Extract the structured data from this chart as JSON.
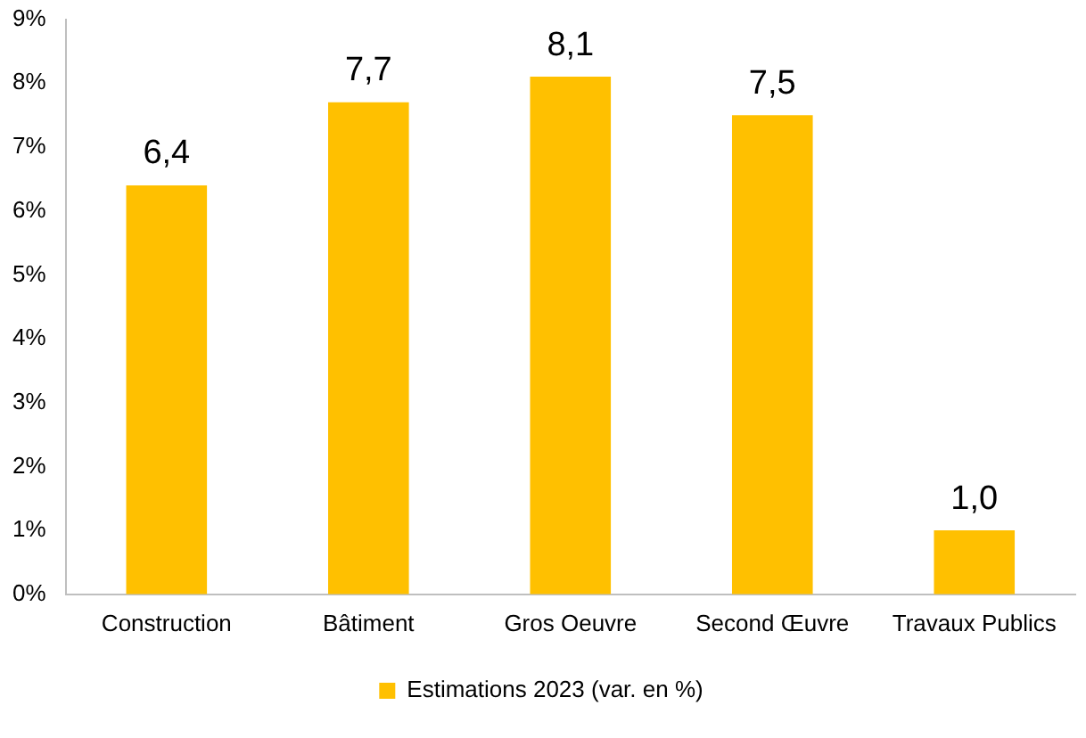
{
  "chart_data": {
    "type": "bar",
    "categories": [
      "Construction",
      "Bâtiment",
      "Gros Oeuvre",
      "Second Œuvre",
      "Travaux Publics"
    ],
    "series": [
      {
        "name": "Estimations 2023 (var. en %)",
        "color": "#ffc000",
        "values": [
          6.4,
          7.7,
          8.1,
          7.5,
          1.0
        ],
        "value_labels": [
          "6,4",
          "7,7",
          "8,1",
          "7,5",
          "1,0"
        ]
      }
    ],
    "ylim": [
      0,
      9
    ],
    "yticks": [
      {
        "value": 0,
        "label": "0%"
      },
      {
        "value": 1,
        "label": "1%"
      },
      {
        "value": 2,
        "label": "2%"
      },
      {
        "value": 3,
        "label": "3%"
      },
      {
        "value": 4,
        "label": "4%"
      },
      {
        "value": 5,
        "label": "5%"
      },
      {
        "value": 6,
        "label": "6%"
      },
      {
        "value": 7,
        "label": "7%"
      },
      {
        "value": 8,
        "label": "8%"
      },
      {
        "value": 9,
        "label": "9%"
      }
    ],
    "grid": false,
    "legend": "bottom"
  }
}
